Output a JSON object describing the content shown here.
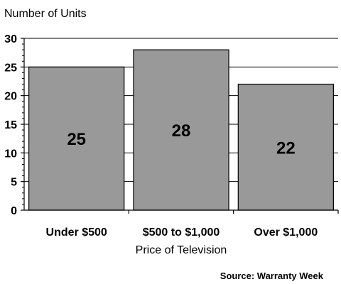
{
  "chart_data": {
    "type": "bar",
    "title": "",
    "ylabel": "Number of Units",
    "xlabel": "Price of Television",
    "categories": [
      "Under $500",
      "$500 to $1,000",
      "Over $1,000"
    ],
    "values": [
      25,
      28,
      22
    ],
    "data_labels": [
      "25",
      "28",
      "22"
    ],
    "ylim": [
      0,
      30
    ],
    "yticks": [
      "0",
      "5",
      "10",
      "15",
      "20",
      "25",
      "30"
    ],
    "grid": true,
    "legend": "none",
    "bar_color": "#999999",
    "source": "Source: Warranty Week"
  }
}
